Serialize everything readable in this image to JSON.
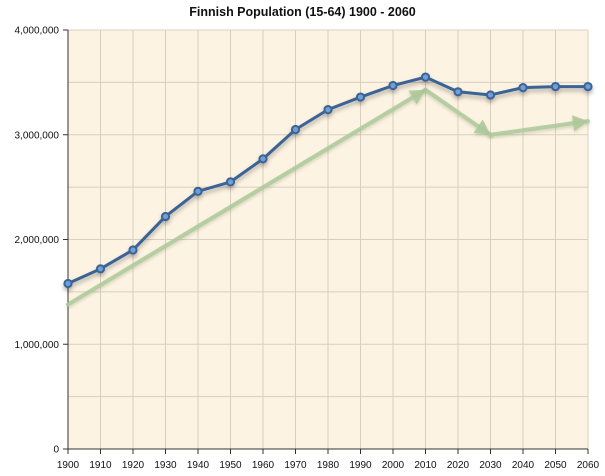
{
  "chart_data": {
    "type": "line",
    "title": "Finnish Population (15-64) 1900 - 2060",
    "xlabel": "",
    "ylabel": "",
    "categories": [
      "1900",
      "1910",
      "1920",
      "1930",
      "1940",
      "1950",
      "1960",
      "1970",
      "1980",
      "1990",
      "2000",
      "2010",
      "2020",
      "2030",
      "2040",
      "2050",
      "2060"
    ],
    "series": [
      {
        "name": "Population 15-64",
        "values": [
          1580000,
          1720000,
          1900000,
          2220000,
          2460000,
          2550000,
          2770000,
          3050000,
          3240000,
          3360000,
          3470000,
          3550000,
          3410000,
          3380000,
          3450000,
          3460000,
          3460000
        ]
      }
    ],
    "trend_annotations": [
      {
        "from": [
          "1900",
          1380000
        ],
        "to": [
          "2010",
          3430000
        ]
      },
      {
        "from": [
          "2010",
          3430000
        ],
        "to": [
          "2030",
          3000000
        ]
      },
      {
        "from": [
          "2030",
          3000000
        ],
        "to": [
          "2060",
          3130000
        ]
      }
    ],
    "ylim": [
      0,
      4000000
    ],
    "yticks": [
      0,
      1000000,
      2000000,
      3000000,
      4000000
    ],
    "ytick_labels": [
      "0",
      "1,000,000",
      "2,000,000",
      "3,000,000",
      "4,000,000"
    ],
    "grid": true,
    "colors": {
      "plot_background": "#fdf3e2",
      "grid": "#d9cfbf",
      "line": "#3a6496",
      "marker_fill": "#6f9fd6",
      "trend_arrow": "#aec99a"
    }
  }
}
